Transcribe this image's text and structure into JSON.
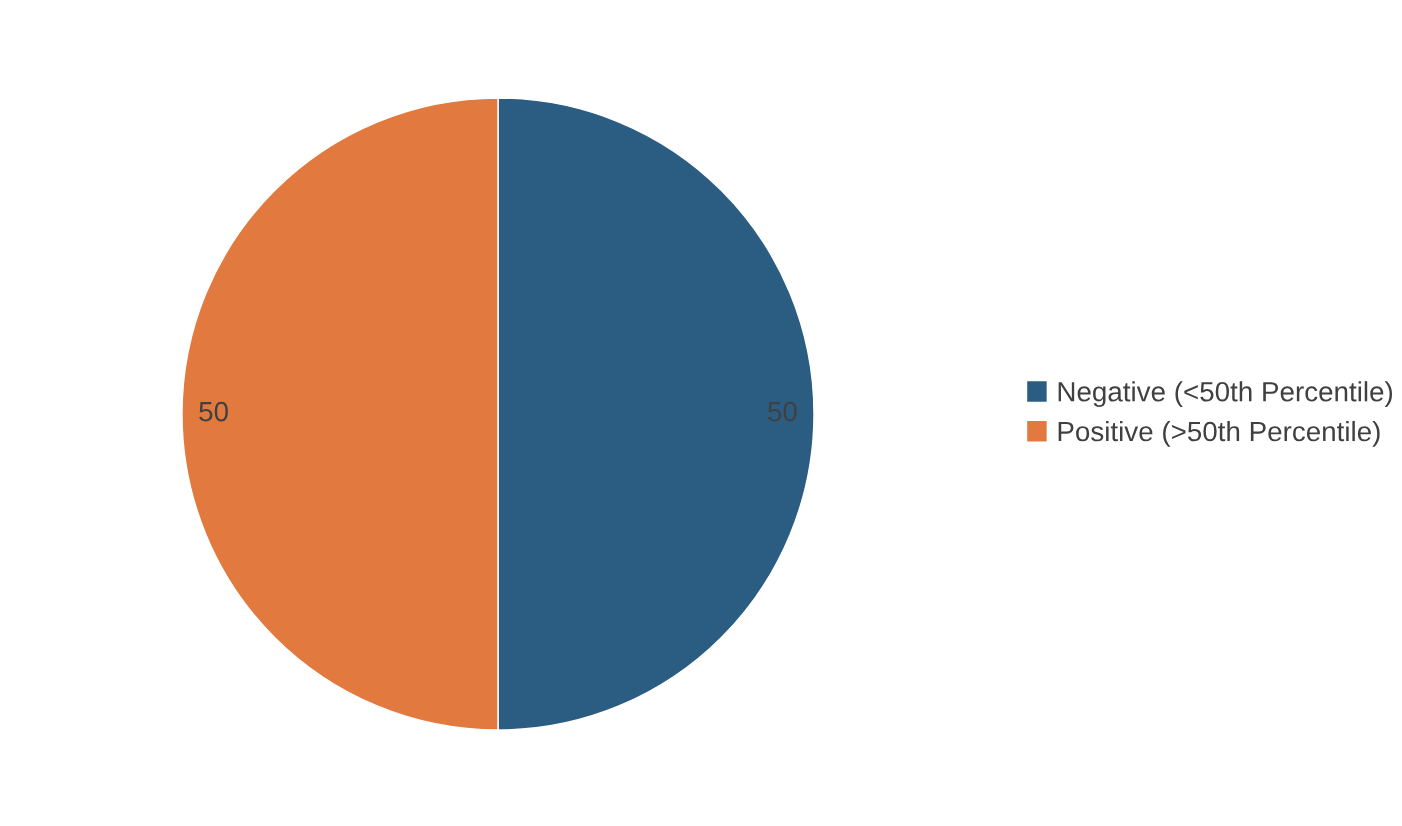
{
  "chart_data": {
    "type": "pie",
    "categories": [
      "Negative (<50th Percentile)",
      "Positive (>50th Percentile)"
    ],
    "values": [
      50,
      50
    ],
    "colors": [
      "#2b5d82",
      "#e2793f"
    ],
    "data_labels": true,
    "legend": "right"
  }
}
